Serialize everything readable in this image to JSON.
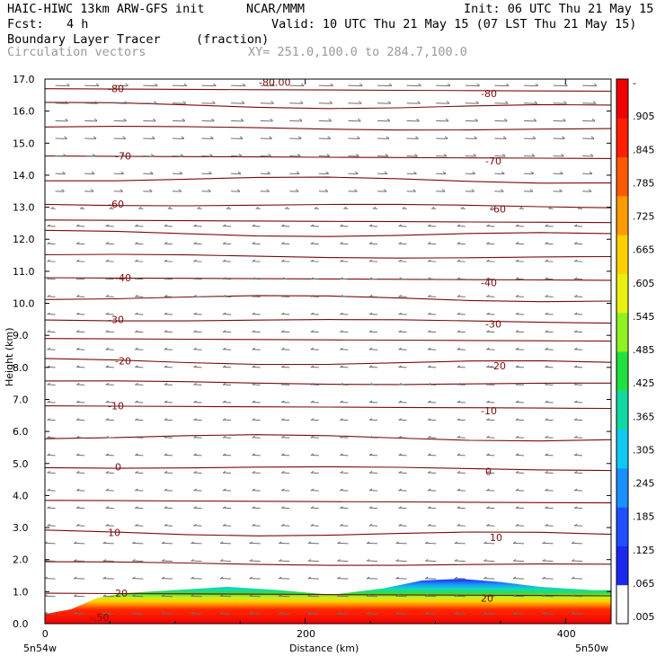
{
  "header": {
    "model": "HAIC-HIWC 13km ARW-GFS init",
    "org": "NCAR/MMM",
    "init": "Init: 06 UTC Thu 21 May 15",
    "fcst_label": "Fcst:",
    "fcst_value": "4 h",
    "valid": "Valid: 10 UTC Thu 21 May 15 (07 LST Thu 21 May 15)",
    "field": "Boundary Layer Tracer",
    "units": "(fraction)",
    "vectors": "Circulation vectors",
    "xy": "XY= 251.0,100.0 to 284.7,100.0"
  },
  "colors": {
    "contour": "#7a0a0a",
    "vector": "#707070",
    "scale": [
      "#ffffff",
      "#1a28f0",
      "#2050ff",
      "#1a90ff",
      "#10c8f0",
      "#10d8a0",
      "#20e040",
      "#90f020",
      "#e8f010",
      "#ffd000",
      "#ff9a00",
      "#ff5a00",
      "#ff1e00",
      "#f00000"
    ]
  },
  "chart_data": {
    "type": "cross-section",
    "xlabel": "Distance (km)",
    "ylabel": "Height (km)",
    "x_ticks": [
      "0",
      "200",
      "400"
    ],
    "xlim": [
      0,
      435
    ],
    "y_ticks": [
      "0.0",
      "1.0",
      "2.0",
      "3.0",
      "4.0",
      "5.0",
      "6.0",
      "7.0",
      "8.0",
      "9.0",
      "10.0",
      "11.0",
      "12.0",
      "13.0",
      "14.0",
      "15.0",
      "16.0",
      "17.0"
    ],
    "ylim": [
      0,
      17
    ],
    "x_corner_labels": [
      "5n54w",
      "5n50w"
    ],
    "colorbar": {
      "labels": [
        ".005",
        ".065",
        ".125",
        ".185",
        ".245",
        ".305",
        ".365",
        ".425",
        ".485",
        ".545",
        ".605",
        ".665",
        ".725",
        ".785",
        ".845",
        ".905",
        "-"
      ]
    },
    "temperature_contours": [
      {
        "label": "-80",
        "height": 16.7
      },
      {
        "label": "-70",
        "height": 14.6
      },
      {
        "label": "-60",
        "height": 13.1
      },
      {
        "label": "-40",
        "height": 10.8
      },
      {
        "label": "-30",
        "height": 9.5
      },
      {
        "label": "-20",
        "height": 8.2
      },
      {
        "label": "-10",
        "height": 6.8
      },
      {
        "label": "0",
        "height": 4.9
      },
      {
        "label": "10",
        "height": 2.85
      },
      {
        "label": "20",
        "height": 0.95
      }
    ],
    "extra_contour_labels": [
      "-80.00",
      "-.50"
    ],
    "contour_heights": [
      0.95,
      1.9,
      2.85,
      3.85,
      4.9,
      5.85,
      6.8,
      7.55,
      8.2,
      8.9,
      9.5,
      10.2,
      10.8,
      11.5,
      12.2,
      12.6,
      13.1,
      13.9,
      14.6,
      15.5,
      16.2,
      16.7
    ],
    "tracer_top_profile": {
      "x": [
        0,
        20,
        40,
        60,
        100,
        140,
        180,
        220,
        260,
        290,
        320,
        350,
        380,
        420,
        435
      ],
      "top_km": [
        0.3,
        0.45,
        0.8,
        0.95,
        1.05,
        1.15,
        1.05,
        0.9,
        1.1,
        1.35,
        1.4,
        1.3,
        1.15,
        1.05,
        1.05
      ]
    }
  }
}
